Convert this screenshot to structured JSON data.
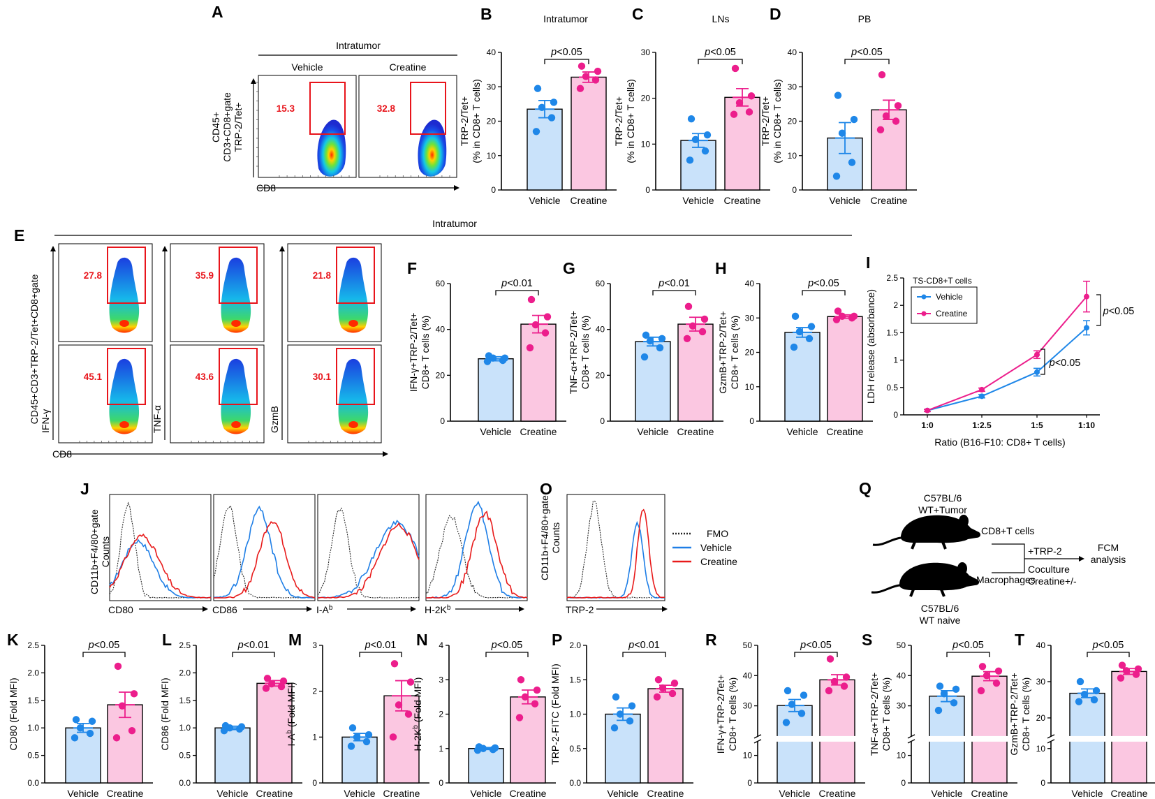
{
  "colors": {
    "vehicle": "#1f87e8",
    "vehicle_fill": "#c9e2fa",
    "creatine": "#ec1e8c",
    "creatine_fill": "#fbc7e1",
    "red": "#e8141b"
  },
  "panel_A": {
    "label": "A",
    "title": "Intratumor",
    "groups": [
      "Vehicle",
      "Creatine"
    ],
    "percents": [
      "15.3",
      "32.8"
    ],
    "ylabel": [
      "CD45+",
      "CD3+CD8+gate",
      "TRP-2/Tet+"
    ],
    "xlabel": "CD8"
  },
  "panel_E": {
    "label": "E",
    "title": "Intratumor",
    "ylabel": "CD45+CD3+TRP-2/Tet+CD8+gate",
    "xlabel": "CD8",
    "markers": [
      "IFN-γ",
      "TNF-α",
      "GzmB"
    ],
    "percents_vehicle": [
      "27.8",
      "35.9",
      "21.8"
    ],
    "percents_creatine": [
      "45.1",
      "43.6",
      "30.1"
    ]
  },
  "panel_I": {
    "label": "I",
    "legend_title": "TS-CD8+T cells",
    "series": [
      "Vehicle",
      "Creatine"
    ],
    "ylabel": "LDH release (absorbance)",
    "xlabel": "Ratio (B16-F10: CD8+ T cells)",
    "ticks": [
      "1:0",
      "1:2.5",
      "1:5",
      "1:10"
    ],
    "yticks": [
      "0",
      "0.5",
      "1",
      "1.5",
      "2",
      "2.5"
    ],
    "p1": "p<0.05",
    "p2": "p<0.05"
  },
  "panel_J": {
    "label": "J",
    "ylabel": [
      "CD11b+F4/80+gate",
      "Counts"
    ],
    "xlabels": [
      "CD80",
      "CD86",
      "I-Ab",
      "H-2Kb"
    ]
  },
  "panel_O": {
    "label": "O",
    "ylabel": [
      "CD11b+F4/80+gate",
      "Counts"
    ],
    "xlabel": "TRP-2"
  },
  "legend_JO": {
    "items": [
      "FMO",
      "Vehicle",
      "Creatine"
    ]
  },
  "panel_Q": {
    "label": "Q",
    "mouse1": [
      "C57BL/6",
      "WT+Tumor"
    ],
    "mouse2": [
      "C57BL/6",
      "WT naive"
    ],
    "cells1": "CD8+T cells",
    "cells2": "Macrophages",
    "step1": "+TRP-2",
    "step2": "Coculture",
    "step3": "Creatine+/-",
    "outcome": [
      "FCM",
      "analysis"
    ]
  },
  "chart_data": [
    {
      "id": "B",
      "type": "bar",
      "title": "Intratumor",
      "categories": [
        "Vehicle",
        "Creatine"
      ],
      "ylabel": [
        "TRP-2/Tet+",
        "(% in CD8+ T cells)"
      ],
      "ylim": [
        0,
        40
      ],
      "yticks": [
        "0",
        "10",
        "20",
        "30",
        "40"
      ],
      "means": [
        23.5,
        32.8
      ],
      "sem": [
        2.5,
        1.5
      ],
      "points": [
        [
          17,
          21,
          24,
          25.5,
          29.5
        ],
        [
          29.5,
          32,
          33,
          34.5,
          36
        ]
      ],
      "p": "p<0.05"
    },
    {
      "id": "C",
      "type": "bar",
      "title": "LNs",
      "categories": [
        "Vehicle",
        "Creatine"
      ],
      "ylabel": [
        "TRP-2/Tet+",
        "(% in CD8+ T cells)"
      ],
      "ylim": [
        0,
        30
      ],
      "yticks": [
        "0",
        "10",
        "20",
        "30"
      ],
      "means": [
        10.8,
        20.2
      ],
      "sem": [
        1.5,
        1.9
      ],
      "points": [
        [
          6.5,
          8.5,
          11,
          12,
          15.5
        ],
        [
          16.5,
          17,
          19,
          20.5,
          26.5
        ]
      ],
      "p": "p<0.05"
    },
    {
      "id": "D",
      "type": "bar",
      "title": "PB",
      "categories": [
        "Vehicle",
        "Creatine"
      ],
      "ylabel": [
        "TRP-2/Tet+",
        "(% in CD8+ T cells)"
      ],
      "ylim": [
        0,
        40
      ],
      "yticks": [
        "0",
        "10",
        "20",
        "30",
        "40"
      ],
      "means": [
        15.1,
        23.3
      ],
      "sem": [
        4.5,
        2.8
      ],
      "points": [
        [
          4,
          8,
          16.5,
          20.5,
          27.5
        ],
        [
          17.5,
          20,
          21.5,
          24.5,
          33.5
        ]
      ],
      "p": "p<0.05"
    },
    {
      "id": "F",
      "type": "bar",
      "categories": [
        "Vehicle",
        "Creatine"
      ],
      "ylabel": [
        "IFN-γ+TRP-2/Tet+",
        "CD8+ T cells (%)"
      ],
      "ylim": [
        0,
        60
      ],
      "yticks": [
        "0",
        "20",
        "40",
        "60"
      ],
      "means": [
        27.2,
        42.3
      ],
      "sem": [
        0.9,
        3.8
      ],
      "points": [
        [
          26,
          26.5,
          27.5,
          27.5,
          28.5
        ],
        [
          32,
          38.5,
          42,
          45.5,
          53
        ]
      ],
      "p": "p<0.01"
    },
    {
      "id": "G",
      "type": "bar",
      "categories": [
        "Vehicle",
        "Creatine"
      ],
      "ylabel": [
        "TNF-α+TRP-2/Tet+",
        "CD8+ T cells (%)"
      ],
      "ylim": [
        0,
        60
      ],
      "yticks": [
        "0",
        "20",
        "40",
        "60"
      ],
      "means": [
        34.7,
        42.3
      ],
      "sem": [
        1.9,
        3.0
      ],
      "points": [
        [
          28,
          32,
          35,
          36,
          37.5
        ],
        [
          36,
          39,
          41.5,
          44.5,
          50
        ]
      ],
      "p": "p<0.01"
    },
    {
      "id": "H",
      "type": "bar",
      "categories": [
        "Vehicle",
        "Creatine"
      ],
      "ylabel": [
        "GzmB+TRP-2/Tet+",
        "CD8+ T cells (%)"
      ],
      "ylim": [
        0,
        40
      ],
      "yticks": [
        "0",
        "10",
        "20",
        "30",
        "40"
      ],
      "means": [
        25.8,
        30.4
      ],
      "sem": [
        1.4,
        0.5
      ],
      "points": [
        [
          21.5,
          24,
          26,
          27.5,
          30.5
        ],
        [
          29.5,
          30,
          30.5,
          30.5,
          32
        ]
      ],
      "p": "p<0.05"
    },
    {
      "id": "I",
      "type": "line",
      "x": [
        "1:0",
        "1:2.5",
        "1:5",
        "1:10"
      ],
      "ylim": [
        0,
        2.5
      ],
      "series": [
        {
          "name": "Vehicle",
          "values": [
            0.08,
            0.34,
            0.78,
            1.59
          ],
          "sem": [
            0.02,
            0.03,
            0.07,
            0.13
          ]
        },
        {
          "name": "Creatine",
          "values": [
            0.08,
            0.46,
            1.1,
            2.16
          ],
          "sem": [
            0.02,
            0.03,
            0.07,
            0.28
          ]
        }
      ]
    },
    {
      "id": "K",
      "type": "bar",
      "categories": [
        "Vehicle",
        "Creatine"
      ],
      "ylabel": [
        "CD80 (Fold MFI)"
      ],
      "ylim": [
        0,
        2.5
      ],
      "yticks": [
        "0.0",
        "0.5",
        "1.0",
        "1.5",
        "2.0",
        "2.5"
      ],
      "means": [
        1.0,
        1.42
      ],
      "sem": [
        0.08,
        0.23
      ],
      "points": [
        [
          0.82,
          0.9,
          1.0,
          1.12,
          1.15
        ],
        [
          0.82,
          0.95,
          1.4,
          1.62,
          2.12
        ]
      ],
      "p": "p<0.05"
    },
    {
      "id": "L",
      "type": "bar",
      "categories": [
        "Vehicle",
        "Creatine"
      ],
      "ylabel": [
        "CD86 (Fold MFI)"
      ],
      "ylim": [
        0,
        2.5
      ],
      "yticks": [
        "0.0",
        "0.5",
        "1.0",
        "1.5",
        "2.0",
        "2.5"
      ],
      "means": [
        1.0,
        1.81
      ],
      "sem": [
        0.03,
        0.05
      ],
      "points": [
        [
          0.95,
          0.98,
          1.0,
          1.02,
          1.04
        ],
        [
          1.72,
          1.75,
          1.8,
          1.85,
          1.9
        ]
      ],
      "p": "p<0.01"
    },
    {
      "id": "M",
      "type": "bar",
      "categories": [
        "Vehicle",
        "Creatine"
      ],
      "ylabel": [
        "I-Ab (Fold MFI)"
      ],
      "ylim": [
        0,
        3
      ],
      "yticks": [
        "0",
        "1",
        "2",
        "3"
      ],
      "means": [
        1.0,
        1.9
      ],
      "sem": [
        0.08,
        0.33
      ],
      "points": [
        [
          0.8,
          0.9,
          1.0,
          1.05,
          1.2
        ],
        [
          1.0,
          1.5,
          1.7,
          2.2,
          2.6
        ]
      ],
      "p": "p<0.01"
    },
    {
      "id": "N",
      "type": "bar",
      "categories": [
        "Vehicle",
        "Creatine"
      ],
      "ylabel": [
        "H-2Kb (Fold MFI)"
      ],
      "ylim": [
        0,
        4
      ],
      "yticks": [
        "0",
        "1",
        "2",
        "3",
        "4"
      ],
      "means": [
        1.0,
        2.5
      ],
      "sem": [
        0.03,
        0.2
      ],
      "points": [
        [
          0.95,
          0.97,
          1.0,
          1.02,
          1.05
        ],
        [
          1.9,
          2.3,
          2.5,
          2.7,
          3.0
        ]
      ],
      "p": "p<0.05"
    },
    {
      "id": "P",
      "type": "bar",
      "categories": [
        "Vehicle",
        "Creatine"
      ],
      "ylabel": [
        "TRP-2-FITC (Fold MFI)"
      ],
      "ylim": [
        0,
        2.0
      ],
      "yticks": [
        "0.0",
        "0.5",
        "1.0",
        "1.5",
        "2.0"
      ],
      "means": [
        1.0,
        1.37
      ],
      "sem": [
        0.09,
        0.05
      ],
      "points": [
        [
          0.8,
          0.9,
          1.0,
          1.12,
          1.25
        ],
        [
          1.25,
          1.3,
          1.38,
          1.45,
          1.5
        ]
      ],
      "p": "p<0.01"
    },
    {
      "id": "R",
      "type": "bar",
      "categories": [
        "Vehicle",
        "Creatine"
      ],
      "ylabel": [
        "IFN-γ+TRP-2/Tet+",
        "CD8+ T cells (%)"
      ],
      "ylim": [
        0,
        50
      ],
      "axis_break": [
        15,
        20
      ],
      "yticks": [
        "0",
        "10",
        "30",
        "40",
        "50"
      ],
      "means": [
        30.1,
        38.6
      ],
      "sem": [
        2.0,
        1.7
      ],
      "points": [
        [
          24.5,
          27.5,
          30.5,
          33.5,
          35
        ],
        [
          35,
          36.5,
          38,
          39.5,
          45.5
        ]
      ],
      "p": "p<0.05"
    },
    {
      "id": "S",
      "type": "bar",
      "categories": [
        "Vehicle",
        "Creatine"
      ],
      "ylabel": [
        "TNF-α+TRP-2/Tet+",
        "CD8+ T cells (%)"
      ],
      "ylim": [
        0,
        50
      ],
      "axis_break": [
        15,
        20
      ],
      "yticks": [
        "0",
        "10",
        "30",
        "40",
        "50"
      ],
      "means": [
        33.2,
        39.8
      ],
      "sem": [
        1.8,
        1.5
      ],
      "points": [
        [
          28.5,
          31,
          34,
          35.5,
          36.5
        ],
        [
          35,
          37.5,
          40,
          41.5,
          43
        ]
      ],
      "p": "p<0.05"
    },
    {
      "id": "T",
      "type": "bar",
      "categories": [
        "Vehicle",
        "Creatine"
      ],
      "ylabel": [
        "GzmB+TRP-2/Tet+",
        "CD8+ T cells (%)"
      ],
      "ylim": [
        0,
        40
      ],
      "axis_break": [
        12,
        15
      ],
      "yticks": [
        "0",
        "10",
        "20",
        "30",
        "40"
      ],
      "means": [
        26.8,
        32.8
      ],
      "sem": [
        1.2,
        0.8
      ],
      "points": [
        [
          24.5,
          25,
          26.5,
          27.5,
          30
        ],
        [
          31,
          32,
          33,
          33.5,
          34.5
        ]
      ],
      "p": "p<0.05"
    }
  ]
}
